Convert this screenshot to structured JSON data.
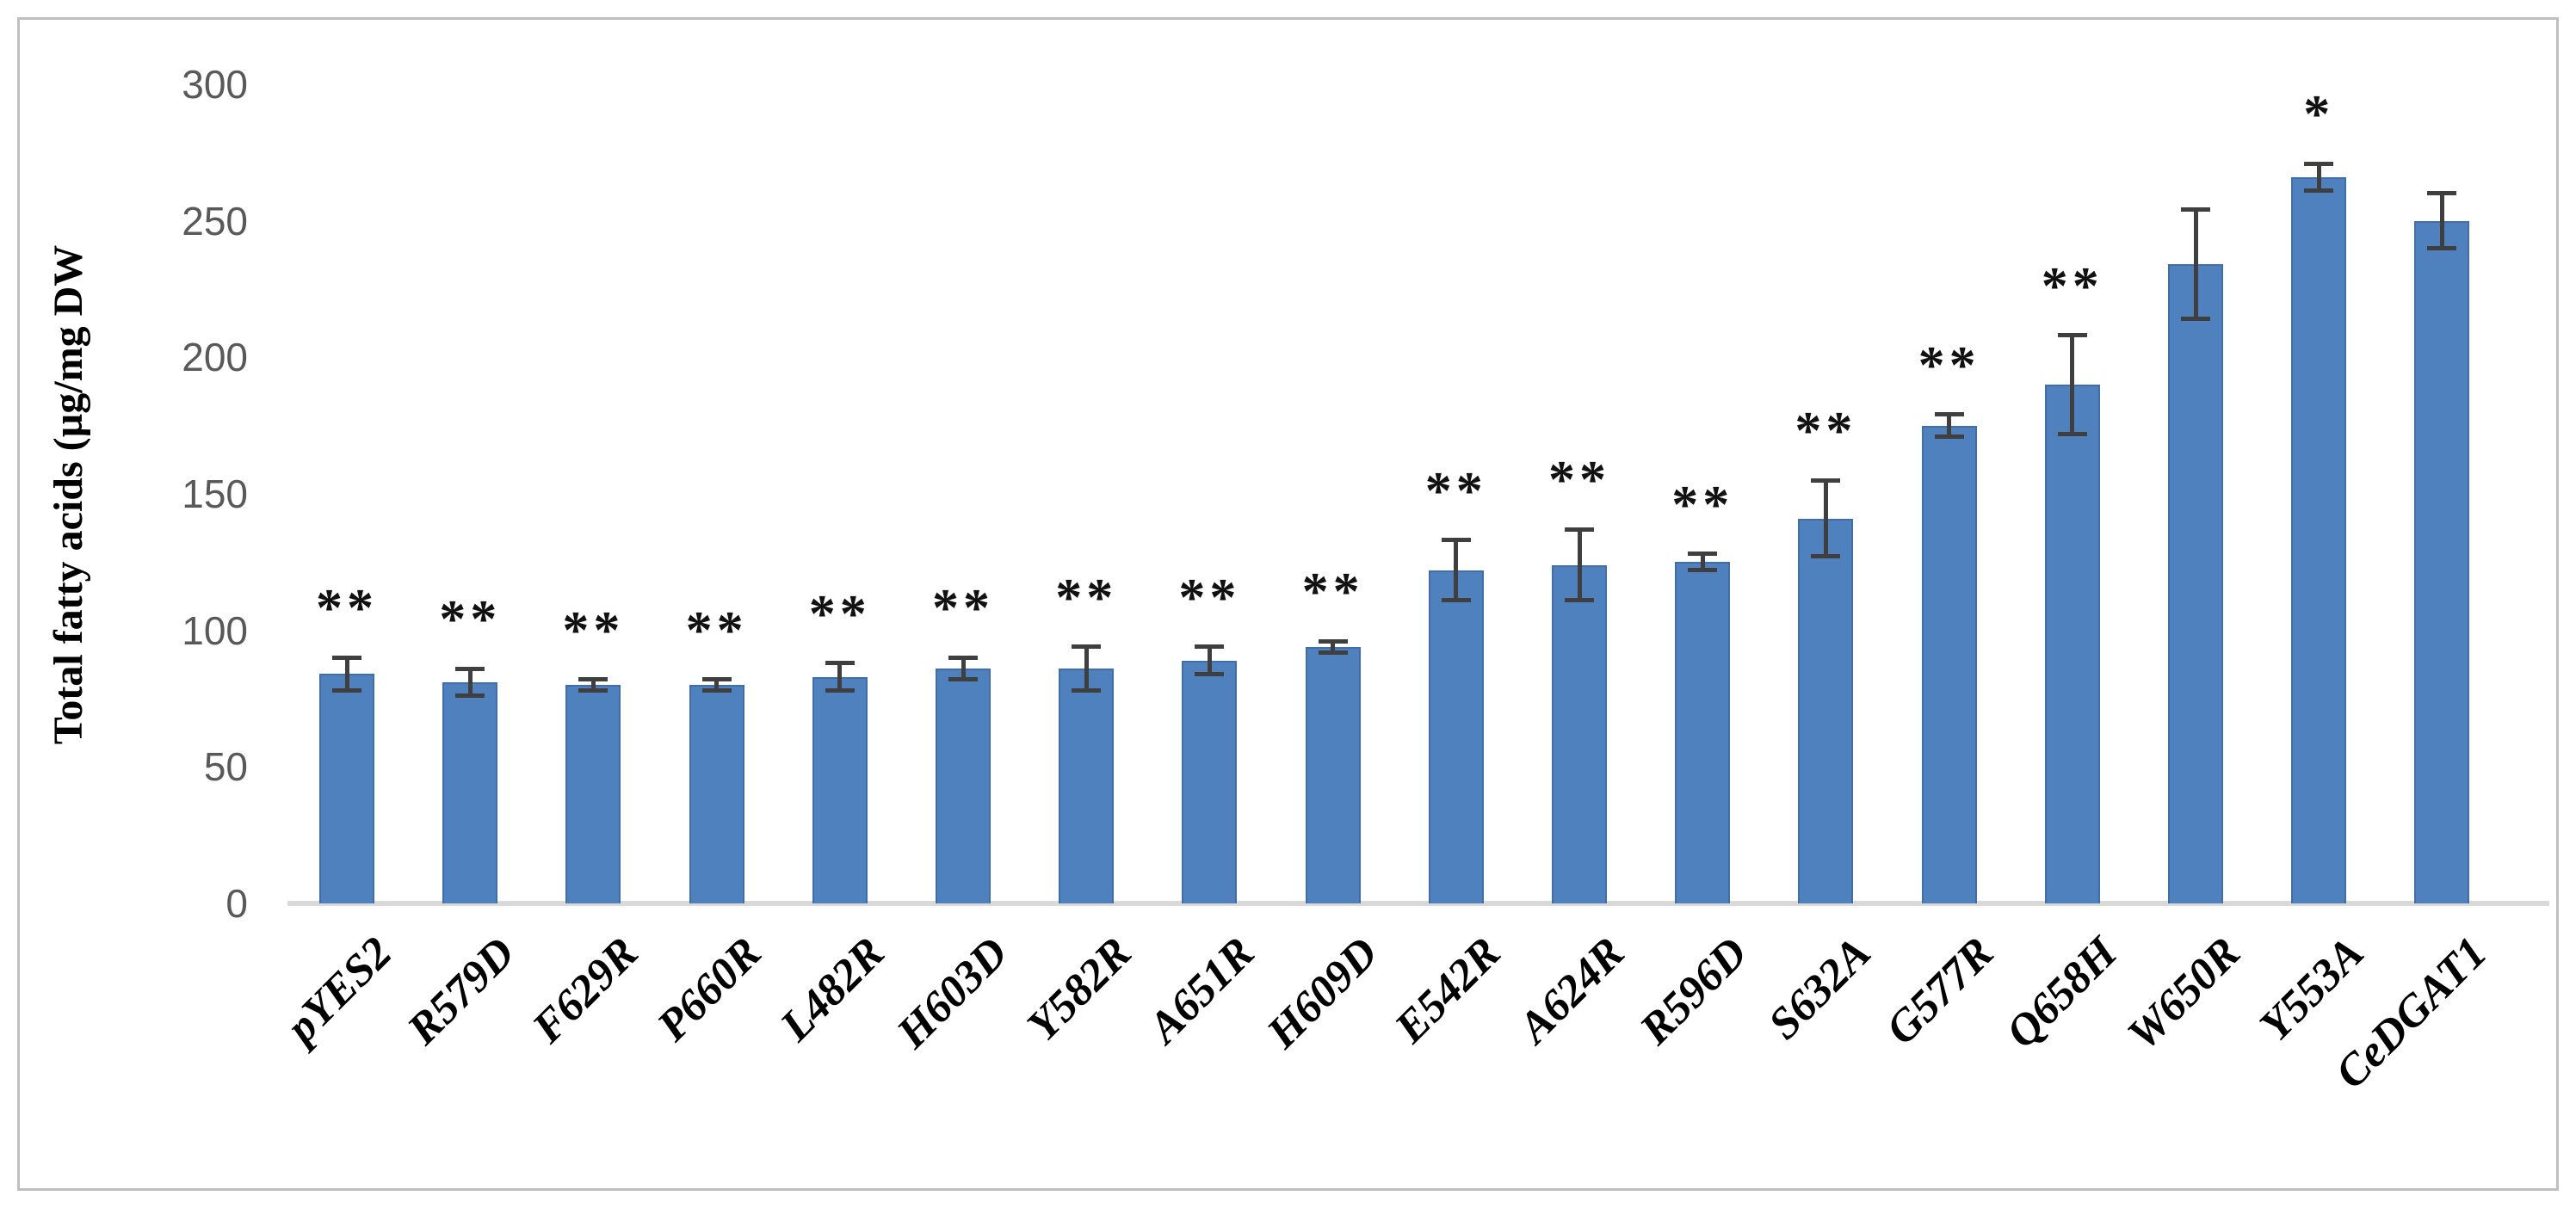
{
  "chart_data": {
    "type": "bar",
    "title": "",
    "ylabel": "Total fatty acids (µg/mg DW",
    "xlabel": "",
    "ylim": [
      0,
      300
    ],
    "yticks": [
      0,
      50,
      100,
      150,
      200,
      250,
      300
    ],
    "grid": false,
    "legend": false,
    "categories": [
      "pYES2",
      "R579D",
      "F629R",
      "P660R",
      "L482R",
      "H603D",
      "Y582R",
      "A651R",
      "H609D",
      "E542R",
      "A624R",
      "R596D",
      "S632A",
      "G577R",
      "Q658H",
      "W650R",
      "Y553A",
      "CeDGAT1"
    ],
    "values": [
      84,
      81,
      80,
      80,
      83,
      86,
      86,
      89,
      94,
      122,
      124,
      125,
      141,
      175,
      190,
      234,
      266,
      250
    ],
    "errors": [
      6,
      5,
      2,
      2,
      5,
      4,
      8,
      5,
      2,
      11,
      13,
      3,
      14,
      4,
      18,
      20,
      5,
      10
    ],
    "significance": [
      "**",
      "**",
      "**",
      "**",
      "**",
      "**",
      "**",
      "**",
      "**",
      "**",
      "**",
      "**",
      "**",
      "**",
      "**",
      "",
      "*",
      ""
    ],
    "colors": {
      "bar": "#4e81bd",
      "bar_edge": "#3f6ea9",
      "error_bar": "#3f3f3f",
      "axis_line": "#d9d9d9",
      "tick_label": "#595959",
      "text": "#000000",
      "frame": "#bfbfbf",
      "background": "#ffffff"
    }
  }
}
